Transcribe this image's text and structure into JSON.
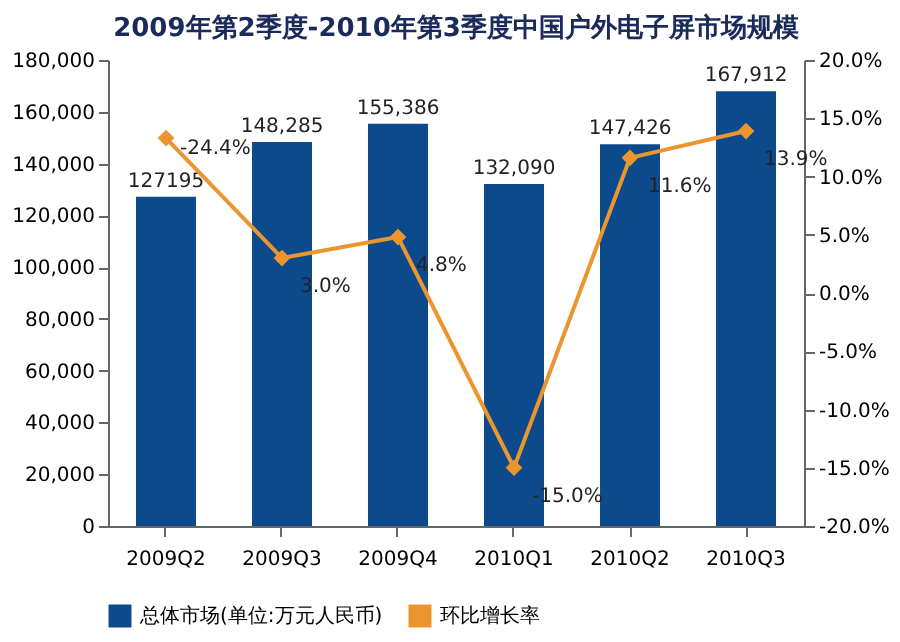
{
  "chart_data": {
    "type": "bar",
    "title": "2009年第2季度-2010年第3季度中国户外电子屏市场规模",
    "categories": [
      "2009Q2",
      "2009Q3",
      "2009Q4",
      "2010Q1",
      "2010Q2",
      "2010Q3"
    ],
    "series": [
      {
        "name": "总体市场(单位:万元人民币)",
        "color": "#0d4a8c",
        "values": [
          127195,
          148285,
          155386,
          132090,
          147426,
          167912
        ],
        "value_labels": [
          "127195",
          "148,285",
          "155,386",
          "132,090",
          "147,426",
          "167,912"
        ]
      },
      {
        "name": "环比增长率",
        "type": "line",
        "axis": "y2",
        "color": "#eb952e",
        "marker": "diamond",
        "line_style": "solid",
        "values": [
          13.3,
          3.0,
          4.8,
          -15.0,
          11.6,
          13.9
        ],
        "value_labels": [
          null,
          "3.0%",
          "4.8%",
          "-15.0%",
          "11.6%",
          "13.9%"
        ]
      }
    ],
    "ylim": [
      0,
      180000
    ],
    "yticks": [
      0,
      {
        "value": 20000,
        "label": "20,000"
      },
      {
        "value": 40000,
        "label": "40,000"
      },
      {
        "value": 60000,
        "label": "60,000"
      },
      {
        "value": 80000,
        "label": "80,000"
      },
      {
        "value": 100000,
        "label": "100,000"
      },
      {
        "value": 120000,
        "label": "120,000"
      },
      {
        "value": 140000,
        "label": "140,000"
      },
      {
        "value": 160000,
        "label": "160,000"
      },
      {
        "value": 180000,
        "label": "180,000"
      }
    ],
    "y2lim": [
      -20,
      20
    ],
    "y2ticks": [
      {
        "value": -20,
        "label": "-20.0%"
      },
      {
        "value": -15,
        "label": "-15.0%"
      },
      {
        "value": -10,
        "label": "-10.0%"
      },
      {
        "value": -5,
        "label": "-5.0%"
      },
      {
        "value": 0,
        "label": "0.0%"
      },
      {
        "value": 5,
        "label": "5.0%"
      },
      {
        "value": 10,
        "label": "10.0%"
      },
      {
        "value": 15,
        "label": "15.0%"
      },
      {
        "value": 20,
        "label": "20.0%"
      }
    ],
    "annotations": [
      "-24.4%"
    ],
    "legend": "bottom",
    "grid": false
  }
}
